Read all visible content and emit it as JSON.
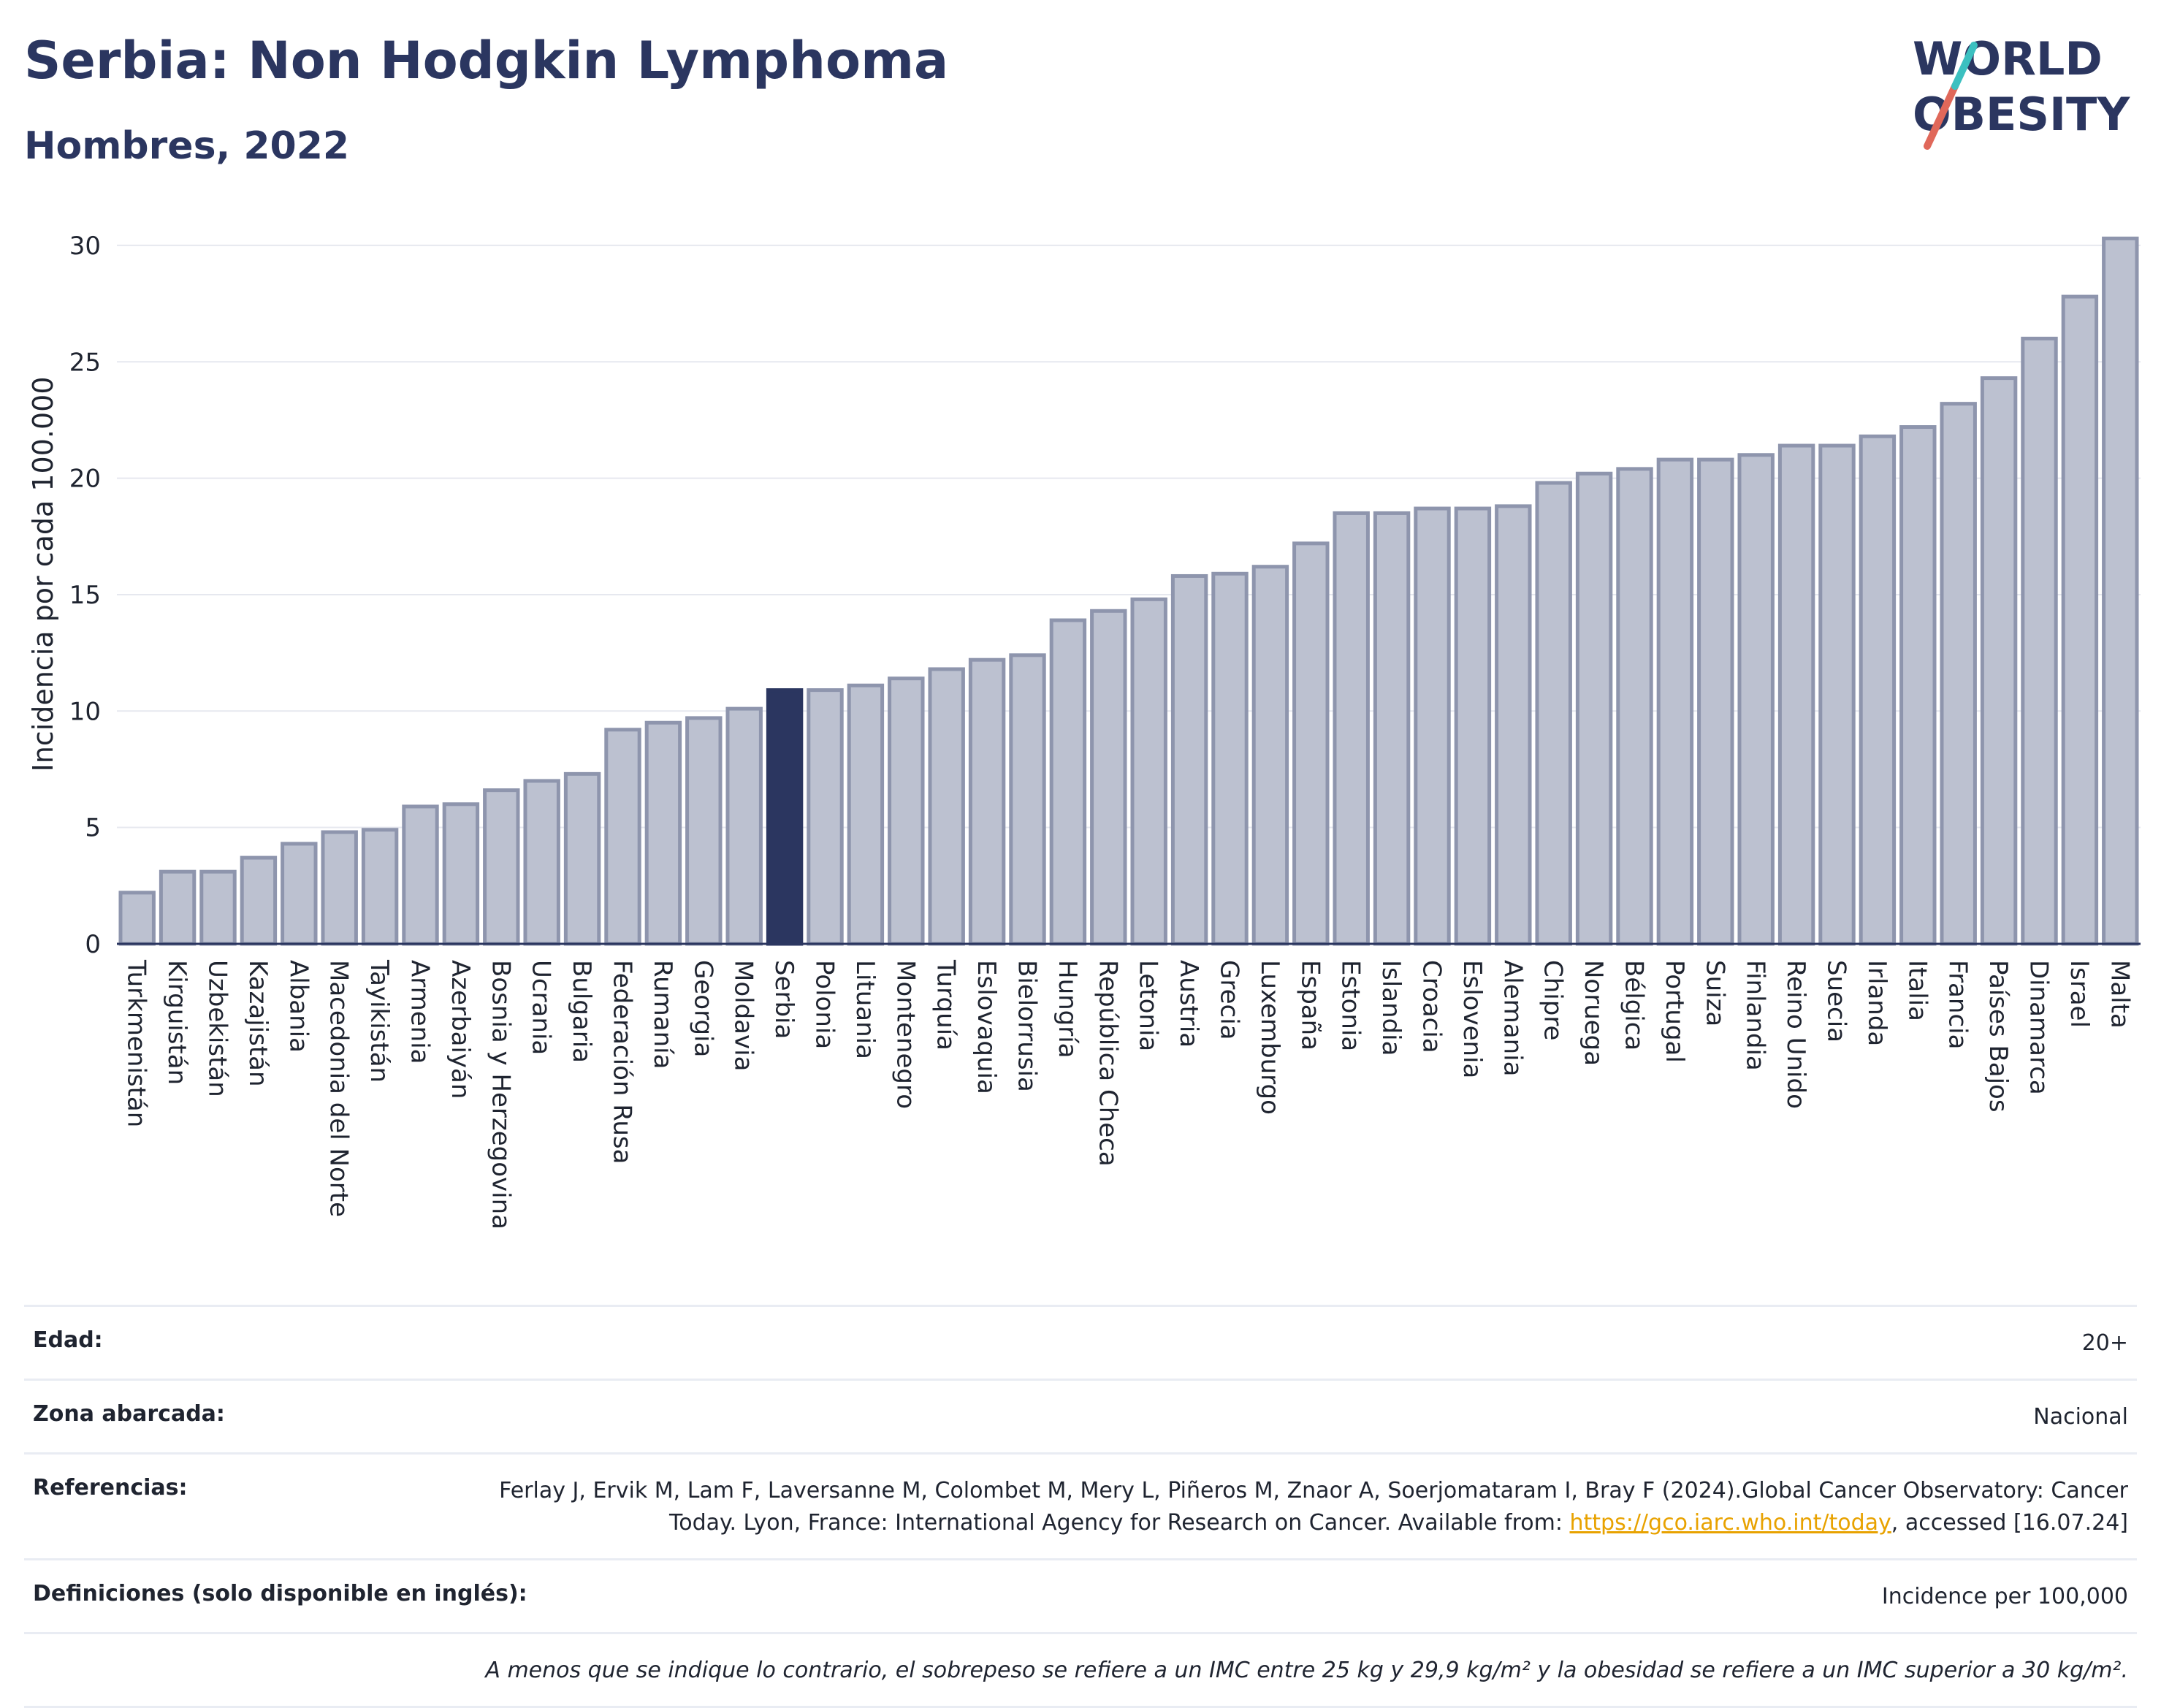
{
  "header": {
    "title": "Serbia: Non Hodgkin Lymphoma",
    "subtitle": "Hombres, 2022",
    "logo_line1": "WORLD",
    "logo_line2": "OBESITY"
  },
  "colors": {
    "title": "#2b3660",
    "bar": "#bcc1d0",
    "bar_stroke": "#8e95ad",
    "highlight": "#2b3660",
    "logo_accent1": "#e0685a",
    "logo_accent2": "#3cc0c0"
  },
  "chart_data": {
    "type": "bar",
    "title": "Serbia: Non Hodgkin Lymphoma",
    "subtitle": "Hombres, 2022",
    "xlabel": "",
    "ylabel": "Incidencia por cada 100.000",
    "ylim": [
      0,
      30.5
    ],
    "yticks": [
      0,
      5,
      10,
      15,
      20,
      25,
      30
    ],
    "grid": true,
    "highlight": "Serbia",
    "categories": [
      "Turkmenistán",
      "Kirguistán",
      "Uzbekistán",
      "Kazajistán",
      "Albania",
      "Macedonia del Norte",
      "Tayikistán",
      "Armenia",
      "Azerbaiyán",
      "Bosnia y Herzegovina",
      "Ucrania",
      "Bulgaria",
      "Federación Rusa",
      "Rumanía",
      "Georgia",
      "Moldavia",
      "Serbia",
      "Polonia",
      "Lituania",
      "Montenegro",
      "Turquía",
      "Eslovaquia",
      "Bielorrusia",
      "Hungría",
      "República Checa",
      "Letonia",
      "Austria",
      "Grecia",
      "Luxemburgo",
      "España",
      "Estonia",
      "Islandia",
      "Croacia",
      "Eslovenia",
      "Alemania",
      "Chipre",
      "Noruega",
      "Bélgica",
      "Portugal",
      "Suiza",
      "Finlandia",
      "Reino Unido",
      "Suecia",
      "Irlanda",
      "Italia",
      "Francia",
      "Países Bajos",
      "Dinamarca",
      "Israel",
      "Malta"
    ],
    "values": [
      2.2,
      3.1,
      3.1,
      3.7,
      4.3,
      4.8,
      4.9,
      5.9,
      6.0,
      6.6,
      7.0,
      7.3,
      9.2,
      9.5,
      9.7,
      10.1,
      10.9,
      10.9,
      11.1,
      11.4,
      11.8,
      12.2,
      12.4,
      13.9,
      14.3,
      14.8,
      15.8,
      15.9,
      16.2,
      17.2,
      18.5,
      18.5,
      18.7,
      18.7,
      18.8,
      19.8,
      20.2,
      20.4,
      20.8,
      20.8,
      21.0,
      21.4,
      21.4,
      21.8,
      22.2,
      23.2,
      24.3,
      26.0,
      27.8,
      30.3
    ]
  },
  "info": {
    "age_label": "Edad:",
    "age_value": "20+",
    "zone_label": "Zona abarcada:",
    "zone_value": "Nacional",
    "refs_label": "Referencias:",
    "refs_text1": "Ferlay J, Ervik M, Lam F, Laversanne M, Colombet M, Mery L, Piñeros M, Znaor A, Soerjomataram I, Bray F (2024).Global Cancer Observatory: Cancer Today. Lyon, France: International Agency for Research on Cancer. Available from: ",
    "refs_link": "https://gco.iarc.who.int/today",
    "refs_text2": ", accessed [16.07.24]",
    "defs_label": "Definiciones (solo disponible en inglés):",
    "defs_value": "Incidence per 100,000",
    "footnote": "A menos que se indique lo contrario, el sobrepeso se refiere a un IMC entre 25 kg y 29,9 kg/m² y la obesidad se refiere a un IMC superior a 30 kg/m²."
  }
}
